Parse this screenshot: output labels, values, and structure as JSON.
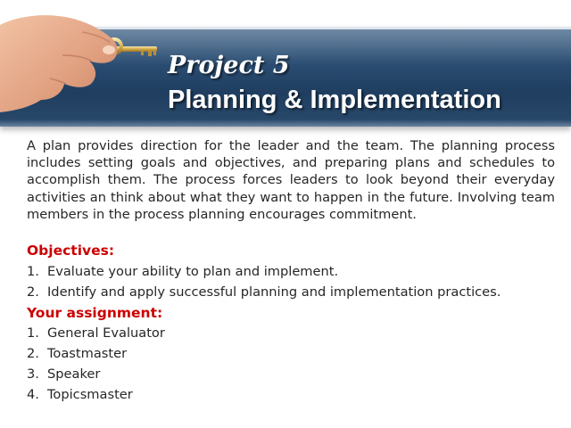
{
  "slide": {
    "title_line1": "Project 5",
    "title_line2": "Planning & Implementation",
    "description": "A plan provides direction for the leader and the team. The planning process includes setting goals and objectives, and preparing plans and schedules to accomplish them. The process forces leaders to look beyond their everyday activities an think about what they want to happen in the future. Involving team members in the process planning encourages commitment.",
    "objectives_heading": "Objectives:",
    "objectives": [
      {
        "num": "1.",
        "text": "Evaluate your ability to plan and implement."
      },
      {
        "num": "2.",
        "text": "Identify and apply successful planning and implementation practices."
      }
    ],
    "assignment_heading": "Your assignment:",
    "assignments": [
      {
        "num": "1.",
        "text": "General Evaluator"
      },
      {
        "num": "2.",
        "text": "Toastmaster"
      },
      {
        "num": "3.",
        "text": "Speaker"
      },
      {
        "num": "4.",
        "text": "Topicsmaster"
      }
    ]
  },
  "colors": {
    "header_blue": "#2b4d72",
    "heading_red": "#cc0000",
    "body_text": "#262626",
    "title_white": "#ffffff"
  },
  "icons": {
    "header_image": "hand-holding-key-icon"
  }
}
